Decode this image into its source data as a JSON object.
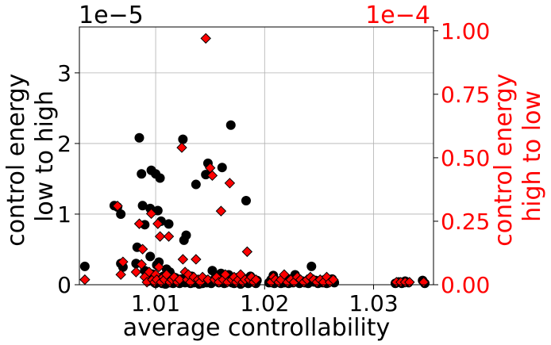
{
  "chart_data": {
    "type": "scatter",
    "xlabel": "average controllability",
    "x_ticks": [
      1.01,
      1.02,
      1.03
    ],
    "x_tick_labels": [
      "1.01",
      "1.02",
      "1.03"
    ],
    "xlim": [
      1.003,
      1.0355
    ],
    "grid": true,
    "colors": {
      "left": "#000000",
      "right": "#ff0000"
    },
    "left_axis": {
      "label_lines": [
        "control energy",
        "low to high"
      ],
      "offset_text": "1e−5",
      "ylim": [
        0,
        3.65
      ],
      "ticks": [
        0,
        1,
        2,
        3
      ],
      "tick_labels": [
        "0",
        "1",
        "2",
        "3"
      ]
    },
    "right_axis": {
      "label_lines": [
        "control energy",
        "high to low"
      ],
      "offset_text": "1e−4",
      "ylim": [
        0,
        1.015
      ],
      "ticks": [
        0,
        0.25,
        0.5,
        0.75,
        1.0
      ],
      "tick_labels": [
        "0.00",
        "0.25",
        "0.50",
        "0.75",
        "1.00"
      ]
    },
    "series": [
      {
        "axis": "left",
        "marker": "circle",
        "points": [
          [
            1.0035,
            0.26
          ],
          [
            1.0062,
            1.12
          ],
          [
            1.0065,
            1.1
          ],
          [
            1.0068,
            0.3
          ],
          [
            1.0068,
            1.0
          ],
          [
            1.007,
            0.25
          ],
          [
            1.0082,
            0.3
          ],
          [
            1.0083,
            0.53
          ],
          [
            1.0085,
            2.08
          ],
          [
            1.0087,
            1.57
          ],
          [
            1.0088,
            1.12
          ],
          [
            1.009,
            0.85
          ],
          [
            1.009,
            0.2
          ],
          [
            1.0092,
            0.1
          ],
          [
            1.0093,
            0.05
          ],
          [
            1.0095,
            0.4
          ],
          [
            1.0095,
            1.08
          ],
          [
            1.0096,
            1.62
          ],
          [
            1.0097,
            0.15
          ],
          [
            1.0098,
            0.08
          ],
          [
            1.0099,
            0.03
          ],
          [
            1.01,
            1.57
          ],
          [
            1.01,
            0.02
          ],
          [
            1.0101,
            0.28
          ],
          [
            1.0102,
            1.05
          ],
          [
            1.0103,
            0.32
          ],
          [
            1.0104,
            1.51
          ],
          [
            1.0104,
            0.05
          ],
          [
            1.0105,
            0.9
          ],
          [
            1.0106,
            0.02
          ],
          [
            1.0107,
            0.12
          ],
          [
            1.0108,
            0.04
          ],
          [
            1.0109,
            0.01
          ],
          [
            1.011,
            0.22
          ],
          [
            1.011,
            0.02
          ],
          [
            1.0112,
            0.86
          ],
          [
            1.0113,
            0.18
          ],
          [
            1.0114,
            0.03
          ],
          [
            1.0115,
            0.06
          ],
          [
            1.0116,
            0.02
          ],
          [
            1.0118,
            0.1
          ],
          [
            1.012,
            0.04
          ],
          [
            1.0122,
            0.02
          ],
          [
            1.0124,
            0.08
          ],
          [
            1.0125,
            2.06
          ],
          [
            1.0126,
            0.63
          ],
          [
            1.0127,
            0.03
          ],
          [
            1.0128,
            0.7
          ],
          [
            1.013,
            0.05
          ],
          [
            1.0132,
            0.02
          ],
          [
            1.0133,
            0.12
          ],
          [
            1.0135,
            0.03
          ],
          [
            1.0137,
            1.42
          ],
          [
            1.0138,
            0.06
          ],
          [
            1.014,
            0.01
          ],
          [
            1.0141,
            0.04
          ],
          [
            1.0143,
            0.02
          ],
          [
            1.0145,
            0.07
          ],
          [
            1.0146,
            1.56
          ],
          [
            1.0147,
            0.03
          ],
          [
            1.0148,
            1.72
          ],
          [
            1.015,
            0.05
          ],
          [
            1.0151,
            0.02
          ],
          [
            1.0152,
            0.2
          ],
          [
            1.0155,
            0.1
          ],
          [
            1.0157,
            0.06
          ],
          [
            1.0158,
            0.03
          ],
          [
            1.016,
            0.16
          ],
          [
            1.0161,
            1.66
          ],
          [
            1.0162,
            0.04
          ],
          [
            1.0163,
            0.02
          ],
          [
            1.0165,
            0.08
          ],
          [
            1.0167,
            0.14
          ],
          [
            1.0168,
            0.05
          ],
          [
            1.0169,
            2.26
          ],
          [
            1.017,
            0.03
          ],
          [
            1.0172,
            0.02
          ],
          [
            1.0173,
            0.06
          ],
          [
            1.0175,
            0.1
          ],
          [
            1.0177,
            0.04
          ],
          [
            1.0178,
            0.01
          ],
          [
            1.018,
            0.03
          ],
          [
            1.0182,
            0.08
          ],
          [
            1.0183,
            1.19
          ],
          [
            1.0184,
            0.05
          ],
          [
            1.0185,
            0.02
          ],
          [
            1.0187,
            0.12
          ],
          [
            1.0188,
            0.06
          ],
          [
            1.019,
            0.04
          ],
          [
            1.0191,
            0.03
          ],
          [
            1.0192,
            0.02
          ],
          [
            1.0193,
            0.06
          ],
          [
            1.0204,
            0.03
          ],
          [
            1.0206,
            0.07
          ],
          [
            1.0208,
            0.13
          ],
          [
            1.0209,
            0.02
          ],
          [
            1.0211,
            0.04
          ],
          [
            1.0213,
            0.05
          ],
          [
            1.0215,
            0.02
          ],
          [
            1.0218,
            0.03
          ],
          [
            1.022,
            0.06
          ],
          [
            1.0222,
            0.02
          ],
          [
            1.0224,
            0.08
          ],
          [
            1.0226,
            0.03
          ],
          [
            1.0228,
            0.14
          ],
          [
            1.023,
            0.04
          ],
          [
            1.0232,
            0.02
          ],
          [
            1.0235,
            0.05
          ],
          [
            1.0237,
            0.03
          ],
          [
            1.024,
            0.02
          ],
          [
            1.0243,
            0.26
          ],
          [
            1.0245,
            0.04
          ],
          [
            1.0247,
            0.06
          ],
          [
            1.0249,
            0.02
          ],
          [
            1.0251,
            0.05
          ],
          [
            1.0253,
            0.03
          ],
          [
            1.0255,
            0.07
          ],
          [
            1.0257,
            0.02
          ],
          [
            1.0259,
            0.04
          ],
          [
            1.0262,
            0.08
          ],
          [
            1.0264,
            0.03
          ],
          [
            1.032,
            0.02
          ],
          [
            1.0323,
            0.04
          ],
          [
            1.0326,
            0.02
          ],
          [
            1.0329,
            0.05
          ],
          [
            1.0332,
            0.03
          ],
          [
            1.0345,
            0.06
          ],
          [
            1.0347,
            0.02
          ]
        ]
      },
      {
        "axis": "right",
        "marker": "diamond",
        "points": [
          [
            1.0035,
            0.02
          ],
          [
            1.0065,
            0.31
          ],
          [
            1.0068,
            0.04
          ],
          [
            1.007,
            0.09
          ],
          [
            1.0082,
            0.05
          ],
          [
            1.0085,
            0.24
          ],
          [
            1.0087,
            0.08
          ],
          [
            1.0088,
            0.14
          ],
          [
            1.009,
            0.03
          ],
          [
            1.0092,
            0.01
          ],
          [
            1.0094,
            0.05
          ],
          [
            1.0096,
            0.28
          ],
          [
            1.0097,
            0.02
          ],
          [
            1.0099,
            0.01
          ],
          [
            1.01,
            0.04
          ],
          [
            1.0101,
            0.02
          ],
          [
            1.0102,
            0.24
          ],
          [
            1.0103,
            0.07
          ],
          [
            1.0104,
            0.19
          ],
          [
            1.0105,
            0.01
          ],
          [
            1.0107,
            0.03
          ],
          [
            1.0108,
            0.02
          ],
          [
            1.011,
            0.04
          ],
          [
            1.0112,
            0.19
          ],
          [
            1.0113,
            0.01
          ],
          [
            1.0115,
            0.02
          ],
          [
            1.0117,
            0.03
          ],
          [
            1.012,
            0.01
          ],
          [
            1.0122,
            0.02
          ],
          [
            1.0124,
            0.54
          ],
          [
            1.0125,
            0.1
          ],
          [
            1.0127,
            0.05
          ],
          [
            1.0129,
            0.02
          ],
          [
            1.013,
            0.04
          ],
          [
            1.0132,
            0.01
          ],
          [
            1.0135,
            0.03
          ],
          [
            1.0137,
            0.1
          ],
          [
            1.0139,
            0.02
          ],
          [
            1.0141,
            0.01
          ],
          [
            1.0143,
            0.03
          ],
          [
            1.0146,
            0.97
          ],
          [
            1.0148,
            0.02
          ],
          [
            1.015,
            0.46
          ],
          [
            1.0152,
            0.43
          ],
          [
            1.0154,
            0.02
          ],
          [
            1.0156,
            0.03
          ],
          [
            1.0158,
            0.01
          ],
          [
            1.016,
            0.29
          ],
          [
            1.0162,
            0.02
          ],
          [
            1.0164,
            0.04
          ],
          [
            1.0166,
            0.01
          ],
          [
            1.0168,
            0.4
          ],
          [
            1.017,
            0.02
          ],
          [
            1.0172,
            0.03
          ],
          [
            1.0174,
            0.01
          ],
          [
            1.0176,
            0.02
          ],
          [
            1.0178,
            0.04
          ],
          [
            1.018,
            0.01
          ],
          [
            1.0182,
            0.02
          ],
          [
            1.0184,
            0.13
          ],
          [
            1.0186,
            0.02
          ],
          [
            1.0188,
            0.03
          ],
          [
            1.019,
            0.01
          ],
          [
            1.0192,
            0.02
          ],
          [
            1.0206,
            0.01
          ],
          [
            1.0208,
            0.03
          ],
          [
            1.021,
            0.02
          ],
          [
            1.0213,
            0.01
          ],
          [
            1.0215,
            0.02
          ],
          [
            1.0218,
            0.04
          ],
          [
            1.0221,
            0.01
          ],
          [
            1.0224,
            0.02
          ],
          [
            1.0227,
            0.01
          ],
          [
            1.023,
            0.03
          ],
          [
            1.0233,
            0.02
          ],
          [
            1.0236,
            0.01
          ],
          [
            1.0239,
            0.02
          ],
          [
            1.0242,
            0.03
          ],
          [
            1.0245,
            0.02
          ],
          [
            1.0248,
            0.01
          ],
          [
            1.0251,
            0.02
          ],
          [
            1.0254,
            0.01
          ],
          [
            1.0257,
            0.03
          ],
          [
            1.026,
            0.01
          ],
          [
            1.0263,
            0.02
          ],
          [
            1.0321,
            0.01
          ],
          [
            1.0325,
            0.01
          ],
          [
            1.0329,
            0.01
          ],
          [
            1.0333,
            0.01
          ],
          [
            1.0346,
            0.01
          ]
        ]
      }
    ]
  }
}
